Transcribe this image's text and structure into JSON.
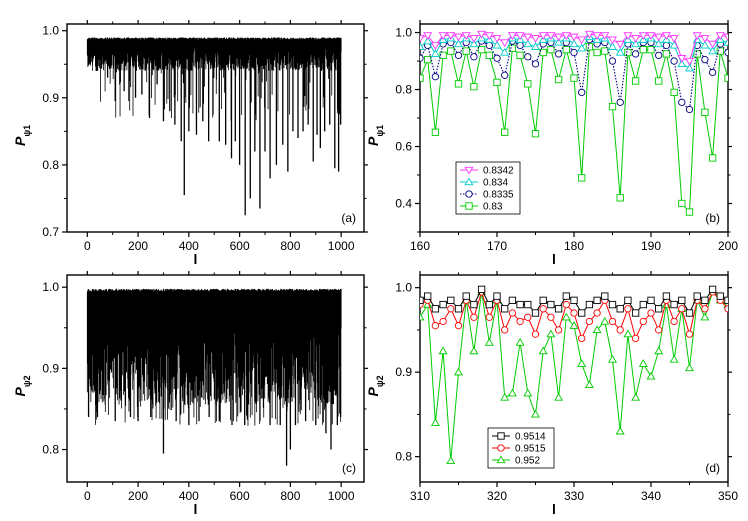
{
  "chart_data": [
    {
      "type": "line",
      "panel_label": "(a)",
      "xlabel": "l",
      "ylabel": "P",
      "ylabel_sub": "ψ1",
      "xlim": [
        -80,
        1090
      ],
      "ylim": [
        0.7,
        1.01
      ],
      "xticks": [
        "0",
        "200",
        "400",
        "600",
        "800",
        "1000"
      ],
      "yticks": [
        "0.7",
        "0.8",
        "0.9",
        "1.0"
      ],
      "series": [
        {
          "x": [
            0,
            1000
          ],
          "upper": 0.99,
          "base_low": 0.94,
          "lower_min": 0.725,
          "dips": [
            [
              35,
              0.94
            ],
            [
              55,
              0.96
            ],
            [
              80,
              0.93
            ],
            [
              110,
              0.895
            ],
            [
              145,
              0.91
            ],
            [
              165,
              0.925
            ],
            [
              190,
              0.9
            ],
            [
              215,
              0.905
            ],
            [
              245,
              0.87
            ],
            [
              275,
              0.92
            ],
            [
              300,
              0.865
            ],
            [
              325,
              0.88
            ],
            [
              345,
              0.86
            ],
            [
              370,
              0.835
            ],
            [
              382,
              0.755
            ],
            [
              400,
              0.85
            ],
            [
              430,
              0.845
            ],
            [
              455,
              0.865
            ],
            [
              478,
              0.835
            ],
            [
              495,
              0.875
            ],
            [
              520,
              0.835
            ],
            [
              545,
              0.83
            ],
            [
              568,
              0.81
            ],
            [
              583,
              0.835
            ],
            [
              600,
              0.8
            ],
            [
              622,
              0.725
            ],
            [
              642,
              0.75
            ],
            [
              660,
              0.82
            ],
            [
              680,
              0.735
            ],
            [
              700,
              0.82
            ],
            [
              720,
              0.78
            ],
            [
              745,
              0.8
            ],
            [
              770,
              0.83
            ],
            [
              790,
              0.79
            ],
            [
              810,
              0.85
            ],
            [
              830,
              0.84
            ],
            [
              850,
              0.85
            ],
            [
              870,
              0.86
            ],
            [
              890,
              0.805
            ],
            [
              905,
              0.845
            ],
            [
              918,
              0.825
            ],
            [
              935,
              0.85
            ],
            [
              955,
              0.86
            ],
            [
              975,
              0.795
            ],
            [
              990,
              0.79
            ],
            [
              998,
              0.86
            ]
          ]
        }
      ]
    },
    {
      "type": "line",
      "panel_label": "(b)",
      "xlabel": "l",
      "ylabel": "P",
      "ylabel_sub": "ψ1",
      "xlim": [
        160,
        200
      ],
      "ylim": [
        0.3,
        1.03
      ],
      "xticks": [
        "160",
        "170",
        "180",
        "190",
        "200"
      ],
      "yticks": [
        "0.4",
        "0.6",
        "0.8",
        "1.0"
      ],
      "x": [
        160,
        161,
        162,
        163,
        164,
        165,
        166,
        167,
        168,
        169,
        170,
        171,
        172,
        173,
        174,
        175,
        176,
        177,
        178,
        179,
        180,
        181,
        182,
        183,
        184,
        185,
        186,
        187,
        188,
        189,
        190,
        191,
        192,
        193,
        194,
        195,
        196,
        197,
        198,
        199,
        200
      ],
      "series": [
        {
          "name": "0.8342",
          "color": "#ff33ff",
          "marker": "triangle-down",
          "dash": "solid",
          "values": [
            0.98,
            0.99,
            0.955,
            0.99,
            0.99,
            0.985,
            0.99,
            0.98,
            0.995,
            0.99,
            0.98,
            0.965,
            0.99,
            0.99,
            0.985,
            0.98,
            0.99,
            0.99,
            0.985,
            0.99,
            0.985,
            0.975,
            0.995,
            0.99,
            0.99,
            0.975,
            0.96,
            0.99,
            0.98,
            0.99,
            0.99,
            0.985,
            0.99,
            0.98,
            0.91,
            0.9,
            0.99,
            0.98,
            0.96,
            0.99,
            0.985
          ]
        },
        {
          "name": "0.834",
          "color": "#00cccc",
          "marker": "triangle-up",
          "dash": "solid",
          "values": [
            0.95,
            0.97,
            0.925,
            0.975,
            0.98,
            0.96,
            0.98,
            0.96,
            0.98,
            0.975,
            0.955,
            0.93,
            0.98,
            0.975,
            0.96,
            0.95,
            0.975,
            0.98,
            0.965,
            0.98,
            0.96,
            0.945,
            0.985,
            0.975,
            0.98,
            0.95,
            0.93,
            0.975,
            0.96,
            0.975,
            0.98,
            0.96,
            0.975,
            0.955,
            0.89,
            0.875,
            0.975,
            0.955,
            0.935,
            0.975,
            0.965
          ]
        },
        {
          "name": "0.8335",
          "color": "#000080",
          "marker": "circle",
          "dash": "dotted",
          "values": [
            0.91,
            0.955,
            0.845,
            0.96,
            0.965,
            0.92,
            0.965,
            0.915,
            0.97,
            0.955,
            0.91,
            0.85,
            0.97,
            0.955,
            0.915,
            0.89,
            0.96,
            0.965,
            0.925,
            0.965,
            0.93,
            0.79,
            0.975,
            0.96,
            0.965,
            0.9,
            0.755,
            0.96,
            0.925,
            0.965,
            0.965,
            0.92,
            0.955,
            0.9,
            0.755,
            0.73,
            0.955,
            0.905,
            0.86,
            0.96,
            0.93
          ]
        },
        {
          "name": "0.83",
          "color": "#00cc00",
          "marker": "square",
          "dash": "solid",
          "values": [
            0.84,
            0.905,
            0.65,
            0.92,
            0.935,
            0.82,
            0.935,
            0.81,
            0.94,
            0.92,
            0.825,
            0.65,
            0.945,
            0.92,
            0.82,
            0.645,
            0.93,
            0.94,
            0.835,
            0.94,
            0.84,
            0.49,
            0.95,
            0.93,
            0.935,
            0.74,
            0.42,
            0.93,
            0.83,
            0.94,
            0.94,
            0.83,
            0.925,
            0.79,
            0.4,
            0.37,
            0.925,
            0.72,
            0.56,
            0.935,
            0.84
          ]
        }
      ],
      "legend_position": "lower-left"
    },
    {
      "type": "line",
      "panel_label": "(c)",
      "xlabel": "l",
      "ylabel": "P",
      "ylabel_sub": "ψ2",
      "xlim": [
        -80,
        1090
      ],
      "ylim": [
        0.76,
        1.015
      ],
      "xticks": [
        "0",
        "200",
        "400",
        "600",
        "800",
        "1000"
      ],
      "yticks": [
        "0.8",
        "0.9",
        "1.0"
      ],
      "series": [
        {
          "x": [
            0,
            1000
          ],
          "upper": 0.998,
          "base_low": 0.855,
          "lower_min": 0.78,
          "dips": [
            [
              5,
              0.84
            ],
            [
              40,
              0.84
            ],
            [
              110,
              0.835
            ],
            [
              170,
              0.84
            ],
            [
              200,
              0.835
            ],
            [
              250,
              0.84
            ],
            [
              300,
              0.795
            ],
            [
              350,
              0.835
            ],
            [
              400,
              0.83
            ],
            [
              440,
              0.835
            ],
            [
              480,
              0.84
            ],
            [
              520,
              0.835
            ],
            [
              570,
              0.83
            ],
            [
              620,
              0.83
            ],
            [
              680,
              0.835
            ],
            [
              720,
              0.83
            ],
            [
              760,
              0.83
            ],
            [
              785,
              0.78
            ],
            [
              800,
              0.8
            ],
            [
              820,
              0.83
            ],
            [
              860,
              0.835
            ],
            [
              900,
              0.83
            ],
            [
              940,
              0.82
            ],
            [
              960,
              0.8
            ],
            [
              985,
              0.83
            ],
            [
              998,
              0.84
            ]
          ]
        }
      ]
    },
    {
      "type": "line",
      "panel_label": "(d)",
      "xlabel": "l",
      "ylabel": "P",
      "ylabel_sub": "ψ2",
      "xlim": [
        310,
        350
      ],
      "ylim": [
        0.77,
        1.015
      ],
      "xticks": [
        "310",
        "320",
        "330",
        "340",
        "350"
      ],
      "yticks": [
        "0.8",
        "0.9",
        "1.0"
      ],
      "x": [
        310,
        311,
        312,
        313,
        314,
        315,
        316,
        317,
        318,
        319,
        320,
        321,
        322,
        323,
        324,
        325,
        326,
        327,
        328,
        329,
        330,
        331,
        332,
        333,
        334,
        335,
        336,
        337,
        338,
        339,
        340,
        341,
        342,
        343,
        344,
        345,
        346,
        347,
        348,
        349,
        350
      ],
      "series": [
        {
          "name": "0.9514",
          "color": "#000000",
          "marker": "square",
          "dash": "solid",
          "values": [
            0.985,
            0.99,
            0.975,
            0.98,
            0.985,
            0.975,
            0.99,
            0.98,
            0.998,
            0.98,
            0.99,
            0.975,
            0.985,
            0.98,
            0.98,
            0.97,
            0.985,
            0.98,
            0.975,
            0.99,
            0.985,
            0.97,
            0.98,
            0.985,
            0.99,
            0.98,
            0.975,
            0.985,
            0.97,
            0.98,
            0.985,
            0.975,
            0.99,
            0.98,
            0.985,
            0.97,
            0.99,
            0.985,
            0.998,
            0.99,
            0.985
          ]
        },
        {
          "name": "0.9515",
          "color": "#ff0000",
          "marker": "circle",
          "dash": "solid",
          "values": [
            0.98,
            0.985,
            0.955,
            0.96,
            0.975,
            0.955,
            0.985,
            0.965,
            0.995,
            0.965,
            0.985,
            0.95,
            0.97,
            0.96,
            0.965,
            0.945,
            0.975,
            0.965,
            0.95,
            0.98,
            0.97,
            0.94,
            0.96,
            0.97,
            0.985,
            0.96,
            0.95,
            0.975,
            0.94,
            0.96,
            0.97,
            0.95,
            0.985,
            0.96,
            0.975,
            0.945,
            0.985,
            0.975,
            0.995,
            0.985,
            0.975
          ]
        },
        {
          "name": "0.952",
          "color": "#00cc00",
          "marker": "triangle-up",
          "dash": "solid",
          "values": [
            0.965,
            0.98,
            0.84,
            0.925,
            0.795,
            0.9,
            0.985,
            0.925,
            0.995,
            0.935,
            0.985,
            0.87,
            0.875,
            0.935,
            0.875,
            0.85,
            0.925,
            0.945,
            0.87,
            0.965,
            0.955,
            0.91,
            0.885,
            0.95,
            0.96,
            0.915,
            0.83,
            0.945,
            0.87,
            0.91,
            0.895,
            0.925,
            0.98,
            0.915,
            0.975,
            0.905,
            0.985,
            0.965,
            0.995,
            0.985,
            0.98
          ]
        }
      ],
      "legend_position": "lower-left"
    }
  ]
}
